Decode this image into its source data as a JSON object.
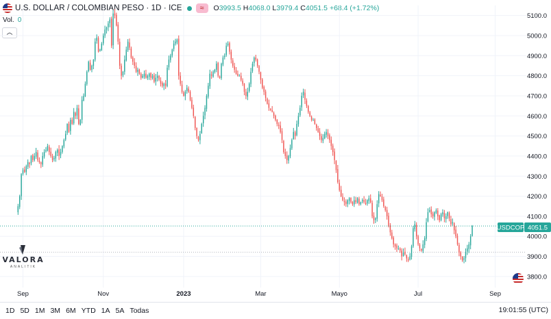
{
  "header": {
    "title": "U.S. DOLLAR / COLOMBIAN PESO · 1D · ICE",
    "badge": "≈",
    "open_label": "O",
    "open": "3993.5",
    "high_label": "H",
    "high": "4068.0",
    "low_label": "L",
    "low": "3979.4",
    "close_label": "C",
    "close": "4051.5",
    "change": "+68.4 (+1.72%)",
    "volume_label": "Vol.",
    "volume": "0",
    "collapse_icon": "chevron-up-icon"
  },
  "price_tag": {
    "symbol": "USDCOP",
    "value": "4051.5"
  },
  "bottom_bar": {
    "timeframes": [
      "1D",
      "5D",
      "1M",
      "3M",
      "6M",
      "YTD",
      "1A",
      "5A",
      "Todas"
    ],
    "time": "19:01:55 (UTC)"
  },
  "logo": {
    "name": "VALORA",
    "sub": "ANALITIK"
  },
  "colors": {
    "up": "#26a69a",
    "down": "#ef5350",
    "grid": "#f0f3fa",
    "price_line": "#26a69a"
  },
  "chart_data": {
    "type": "candlestick",
    "title": "U.S. DOLLAR / COLOMBIAN PESO · 1D · ICE",
    "y_ticks": [
      3800,
      3900,
      4000,
      4100,
      4200,
      4300,
      4400,
      4500,
      4600,
      4700,
      4800,
      4900,
      5000,
      5100
    ],
    "y_tick_labels": [
      "3800.0",
      "3900.0",
      "4000.0",
      "4100.0",
      "4200.0",
      "4300.0",
      "4400.0",
      "4500.0",
      "4600.0",
      "4700.0",
      "4800.0",
      "4900.0",
      "5000.0",
      "5100.0"
    ],
    "ylim": [
      3745,
      5150
    ],
    "x_labels": [
      "Sep",
      "Nov",
      "2023",
      "Mar",
      "Mayo",
      "Jul",
      "Sep"
    ],
    "x_label_positions": [
      3,
      52,
      101,
      148,
      196,
      244,
      291
    ],
    "x_range": [
      -11,
      310
    ],
    "last_price": 4051.5,
    "reference_line": 3921,
    "close_series": [
      4150,
      4200,
      4310,
      4330,
      4320,
      4350,
      4370,
      4360,
      4400,
      4380,
      4400,
      4420,
      4380,
      4370,
      4360,
      4400,
      4420,
      4430,
      4450,
      4420,
      4400,
      4380,
      4390,
      4420,
      4430,
      4400,
      4420,
      4450,
      4480,
      4510,
      4560,
      4520,
      4580,
      4560,
      4620,
      4600,
      4640,
      4560,
      4580,
      4680,
      4700,
      4760,
      4820,
      4870,
      4830,
      4850,
      4880,
      4970,
      4990,
      4920,
      4930,
      4960,
      5000,
      5030,
      5040,
      5060,
      5080,
      4950,
      5110,
      5100,
      5050,
      4970,
      4850,
      4800,
      4820,
      4880,
      4930,
      4970,
      4940,
      4890,
      4870,
      4850,
      4820,
      4830,
      4810,
      4790,
      4800,
      4810,
      4790,
      4800,
      4810,
      4790,
      4800,
      4770,
      4790,
      4800,
      4780,
      4760,
      4750,
      4760,
      4750,
      4840,
      4880,
      4900,
      4930,
      4960,
      4970,
      4980,
      4800,
      4760,
      4720,
      4700,
      4720,
      4740,
      4720,
      4680,
      4640,
      4600,
      4540,
      4500,
      4480,
      4510,
      4560,
      4600,
      4640,
      4700,
      4750,
      4810,
      4800,
      4820,
      4830,
      4860,
      4800,
      4790,
      4860,
      4890,
      4900,
      4950,
      4960,
      4920,
      4880,
      4850,
      4830,
      4810,
      4800,
      4800,
      4780,
      4760,
      4720,
      4700,
      4720,
      4760,
      4820,
      4860,
      4890,
      4880,
      4850,
      4820,
      4780,
      4740,
      4720,
      4690,
      4660,
      4640,
      4630,
      4620,
      4600,
      4580,
      4560,
      4550,
      4520,
      4480,
      4420,
      4400,
      4380,
      4400,
      4440,
      4480,
      4520,
      4500,
      4560,
      4600,
      4640,
      4700,
      4720,
      4680,
      4650,
      4620,
      4600,
      4580,
      4580,
      4560,
      4540,
      4520,
      4500,
      4480,
      4490,
      4510,
      4520,
      4500,
      4480,
      4450,
      4420,
      4380,
      4330,
      4270,
      4230,
      4200,
      4180,
      4170,
      4160,
      4180,
      4190,
      4170,
      4160,
      4180,
      4170,
      4190,
      4160,
      4170,
      4180,
      4170,
      4160,
      4180,
      4190,
      4170,
      4100,
      4080,
      4090,
      4160,
      4210,
      4200,
      4180,
      4150,
      4130,
      4100,
      4050,
      4020,
      3990,
      3960,
      3950,
      3940,
      3940,
      3930,
      3900,
      3920,
      3910,
      3890,
      3880,
      3900,
      3950,
      4040,
      4060,
      4000,
      3960,
      3940,
      3930,
      3960,
      3990,
      4070,
      4120,
      4130,
      4110,
      4100,
      4120,
      4130,
      4100,
      4080,
      4110,
      4120,
      4090,
      4100,
      4120,
      4090,
      4060,
      4070,
      4030,
      4000,
      3960,
      3920,
      3900,
      3880,
      3890,
      3920,
      3940,
      3960,
      4000,
      4051.5
    ]
  }
}
